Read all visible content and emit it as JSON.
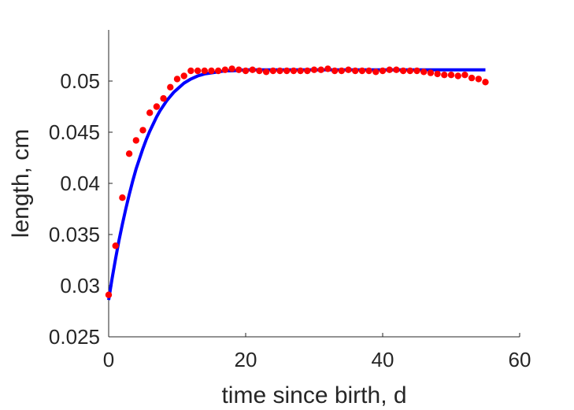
{
  "chart_data": {
    "type": "scatter",
    "xlabel": "time since birth, d",
    "ylabel": "length, cm",
    "xlim": [
      0,
      60
    ],
    "ylim": [
      0.025,
      0.055
    ],
    "xticks": [
      0,
      20,
      40,
      60
    ],
    "xtick_labels": [
      "0",
      "20",
      "40",
      "60"
    ],
    "yticks": [
      0.025,
      0.03,
      0.035,
      0.04,
      0.045,
      0.05
    ],
    "ytick_labels": [
      "0.025",
      "0.03",
      "0.035",
      "0.04",
      "0.045",
      "0.05"
    ],
    "grid": false,
    "series": [
      {
        "kind": "scatter",
        "color": "#ff0000",
        "x": [
          0,
          1,
          2,
          3,
          4,
          5,
          6,
          7,
          8,
          9,
          10,
          11,
          12,
          13,
          14,
          15,
          16,
          17,
          18,
          19,
          20,
          21,
          22,
          23,
          24,
          25,
          26,
          27,
          28,
          29,
          30,
          31,
          32,
          33,
          34,
          35,
          36,
          37,
          38,
          39,
          40,
          41,
          42,
          43,
          44,
          45,
          46,
          47,
          48,
          49,
          50,
          51,
          52,
          53,
          54,
          55
        ],
        "y": [
          0.0291,
          0.0339,
          0.0386,
          0.0429,
          0.0442,
          0.0452,
          0.0469,
          0.0475,
          0.0483,
          0.0494,
          0.0502,
          0.0505,
          0.051,
          0.051,
          0.051,
          0.051,
          0.051,
          0.0511,
          0.0512,
          0.0511,
          0.051,
          0.0511,
          0.051,
          0.0509,
          0.051,
          0.051,
          0.051,
          0.051,
          0.051,
          0.051,
          0.0511,
          0.0511,
          0.0512,
          0.051,
          0.051,
          0.0511,
          0.051,
          0.051,
          0.051,
          0.0509,
          0.051,
          0.0511,
          0.0511,
          0.051,
          0.051,
          0.051,
          0.0509,
          0.0508,
          0.0507,
          0.0506,
          0.0506,
          0.0505,
          0.0506,
          0.0503,
          0.0502,
          0.0499
        ]
      },
      {
        "kind": "line",
        "color": "#0000ff",
        "x": [
          0,
          0.5,
          1,
          1.5,
          2,
          2.5,
          3,
          3.5,
          4,
          4.5,
          5,
          5.5,
          6,
          6.5,
          7,
          7.5,
          8,
          8.5,
          9,
          9.5,
          10,
          11,
          12,
          13,
          14,
          15,
          16,
          17,
          18,
          20,
          22,
          25,
          30,
          35,
          40,
          45,
          50,
          55
        ],
        "y": [
          0.0286,
          0.0307,
          0.0326,
          0.0344,
          0.036,
          0.0375,
          0.0389,
          0.0402,
          0.0414,
          0.0424,
          0.0434,
          0.0443,
          0.0451,
          0.0458,
          0.0465,
          0.0471,
          0.0476,
          0.0481,
          0.0485,
          0.0489,
          0.0492,
          0.0498,
          0.0502,
          0.0505,
          0.0507,
          0.0508,
          0.0509,
          0.051,
          0.051,
          0.0511,
          0.0511,
          0.0511,
          0.0511,
          0.0511,
          0.0511,
          0.0511,
          0.0511,
          0.0511
        ]
      }
    ]
  }
}
